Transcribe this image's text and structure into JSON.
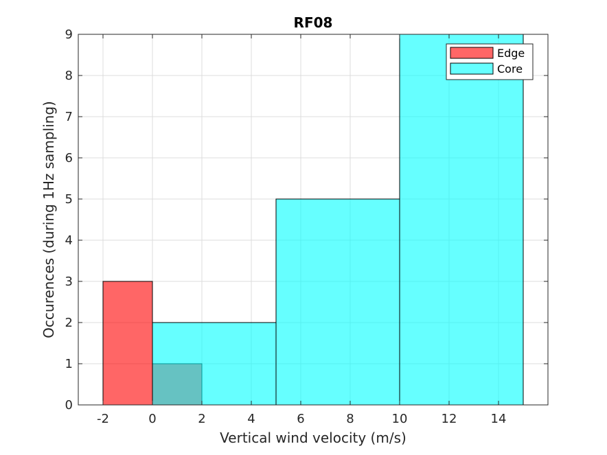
{
  "chart_data": {
    "type": "bar",
    "title": "RF08",
    "xlabel": "Vertical wind velocity (m/s)",
    "ylabel": "Occurences (during 1Hz sampling)",
    "xlim": [
      -3,
      16
    ],
    "ylim": [
      0,
      9
    ],
    "xticks": [
      -2,
      0,
      2,
      4,
      6,
      8,
      10,
      12,
      14
    ],
    "yticks": [
      0,
      1,
      2,
      3,
      4,
      5,
      6,
      7,
      8,
      9
    ],
    "grid": true,
    "legend_position": "top-right",
    "series": [
      {
        "name": "Edge",
        "color": "#ff0000",
        "bins": [
          {
            "x0": -2,
            "x1": 0,
            "count": 3
          },
          {
            "x0": 0,
            "x1": 2,
            "count": 1
          }
        ]
      },
      {
        "name": "Core",
        "color": "#00ffff",
        "bins": [
          {
            "x0": 0,
            "x1": 5,
            "count": 2
          },
          {
            "x0": 5,
            "x1": 10,
            "count": 5
          },
          {
            "x0": 10,
            "x1": 15,
            "count": 9
          }
        ]
      }
    ]
  }
}
